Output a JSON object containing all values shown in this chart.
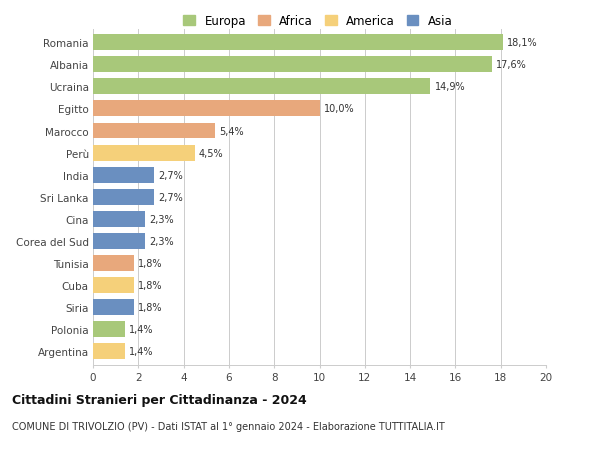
{
  "categories": [
    "Romania",
    "Albania",
    "Ucraina",
    "Egitto",
    "Marocco",
    "Perù",
    "India",
    "Sri Lanka",
    "Cina",
    "Corea del Sud",
    "Tunisia",
    "Cuba",
    "Siria",
    "Polonia",
    "Argentina"
  ],
  "values": [
    18.1,
    17.6,
    14.9,
    10.0,
    5.4,
    4.5,
    2.7,
    2.7,
    2.3,
    2.3,
    1.8,
    1.8,
    1.8,
    1.4,
    1.4
  ],
  "labels": [
    "18,1%",
    "17,6%",
    "14,9%",
    "10,0%",
    "5,4%",
    "4,5%",
    "2,7%",
    "2,7%",
    "2,3%",
    "2,3%",
    "1,8%",
    "1,8%",
    "1,8%",
    "1,4%",
    "1,4%"
  ],
  "colors": [
    "#a8c87a",
    "#a8c87a",
    "#a8c87a",
    "#e8a87c",
    "#e8a87c",
    "#f5d07a",
    "#6a8fc0",
    "#6a8fc0",
    "#6a8fc0",
    "#6a8fc0",
    "#e8a87c",
    "#f5d07a",
    "#6a8fc0",
    "#a8c87a",
    "#f5d07a"
  ],
  "legend_labels": [
    "Europa",
    "Africa",
    "America",
    "Asia"
  ],
  "legend_colors": [
    "#a8c87a",
    "#e8a87c",
    "#f5d07a",
    "#6a8fc0"
  ],
  "title": "Cittadini Stranieri per Cittadinanza - 2024",
  "subtitle": "COMUNE DI TRIVOLZIO (PV) - Dati ISTAT al 1° gennaio 2024 - Elaborazione TUTTITALIA.IT",
  "xlim": [
    0,
    20
  ],
  "xticks": [
    0,
    2,
    4,
    6,
    8,
    10,
    12,
    14,
    16,
    18,
    20
  ],
  "background_color": "#ffffff",
  "grid_color": "#cccccc",
  "bar_height": 0.72
}
